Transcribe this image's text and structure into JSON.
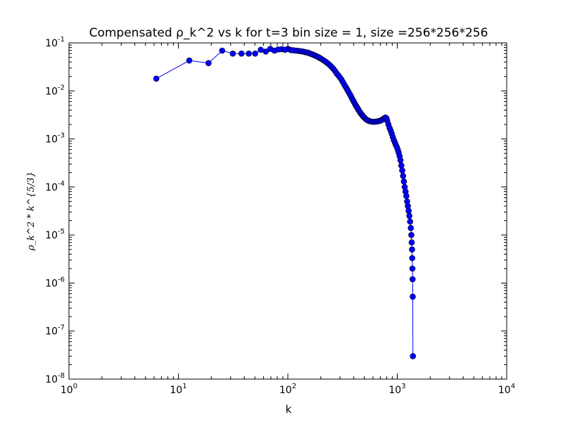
{
  "chart_data": {
    "type": "scatter",
    "title": "Compensated ρ_k^2 vs k for t=3 bin size = 1, size =256*256*256",
    "xlabel": "k",
    "ylabel": "ρ_k^2 * k^{5/3}",
    "xscale": "log",
    "yscale": "log",
    "xlim": [
      1,
      10000
    ],
    "ylim": [
      1e-08,
      0.1
    ],
    "x_ticks": [
      {
        "base": "10",
        "exp": "0",
        "value": 1
      },
      {
        "base": "10",
        "exp": "1",
        "value": 10
      },
      {
        "base": "10",
        "exp": "2",
        "value": 100
      },
      {
        "base": "10",
        "exp": "3",
        "value": 1000
      },
      {
        "base": "10",
        "exp": "4",
        "value": 10000
      }
    ],
    "y_ticks": [
      {
        "base": "10",
        "exp": "-8",
        "value": 1e-08
      },
      {
        "base": "10",
        "exp": "-7",
        "value": 1e-07
      },
      {
        "base": "10",
        "exp": "-6",
        "value": 1e-06
      },
      {
        "base": "10",
        "exp": "-5",
        "value": 1e-05
      },
      {
        "base": "10",
        "exp": "-4",
        "value": 0.0001
      },
      {
        "base": "10",
        "exp": "-3",
        "value": 0.001
      },
      {
        "base": "10",
        "exp": "-2",
        "value": 0.01
      },
      {
        "base": "10",
        "exp": "-1",
        "value": 0.1
      }
    ],
    "grid": false,
    "marker_color": "#0000ff",
    "marker_edge": "#000000",
    "line_color": "#0000ff",
    "series": [
      {
        "points": [
          [
            6.28,
            0.018
          ],
          [
            12.57,
            0.043
          ],
          [
            18.85,
            0.038
          ],
          [
            25.13,
            0.069
          ],
          [
            31.42,
            0.06
          ],
          [
            37.7,
            0.06
          ],
          [
            43.98,
            0.06
          ],
          [
            50.27,
            0.06
          ],
          [
            56.55,
            0.072
          ],
          [
            62.83,
            0.066
          ],
          [
            69.12,
            0.075
          ],
          [
            75.4,
            0.069
          ],
          [
            81.68,
            0.073
          ],
          [
            87.96,
            0.074
          ],
          [
            94.25,
            0.072
          ],
          [
            100.5,
            0.075
          ],
          [
            106.8,
            0.071
          ],
          [
            113.1,
            0.07
          ],
          [
            119.4,
            0.069
          ],
          [
            125.7,
            0.068
          ],
          [
            132,
            0.067
          ],
          [
            138.2,
            0.066
          ],
          [
            144.5,
            0.064
          ],
          [
            150.8,
            0.063
          ],
          [
            157.1,
            0.061
          ],
          [
            163.4,
            0.059
          ],
          [
            169.6,
            0.057
          ],
          [
            175.9,
            0.055
          ],
          [
            182.2,
            0.053
          ],
          [
            188.5,
            0.051
          ],
          [
            194.8,
            0.049
          ],
          [
            201,
            0.047
          ],
          [
            210,
            0.044
          ],
          [
            220,
            0.041
          ],
          [
            230,
            0.038
          ],
          [
            240,
            0.035
          ],
          [
            250,
            0.032
          ],
          [
            260,
            0.029
          ],
          [
            270,
            0.026
          ],
          [
            280,
            0.023
          ],
          [
            290,
            0.021
          ],
          [
            300,
            0.019
          ],
          [
            310,
            0.017
          ],
          [
            320,
            0.015
          ],
          [
            330,
            0.0132
          ],
          [
            340,
            0.0118
          ],
          [
            350,
            0.0105
          ],
          [
            360,
            0.0094
          ],
          [
            370,
            0.0084
          ],
          [
            380,
            0.0075
          ],
          [
            390,
            0.0067
          ],
          [
            400,
            0.006
          ],
          [
            410,
            0.0054
          ],
          [
            420,
            0.0049
          ],
          [
            430,
            0.0045
          ],
          [
            440,
            0.0041
          ],
          [
            450,
            0.0038
          ],
          [
            460,
            0.0035
          ],
          [
            470,
            0.0033
          ],
          [
            480,
            0.0031
          ],
          [
            490,
            0.0029
          ],
          [
            500,
            0.0028
          ],
          [
            515,
            0.0026
          ],
          [
            530,
            0.0025
          ],
          [
            545,
            0.0024
          ],
          [
            560,
            0.00235
          ],
          [
            580,
            0.0023
          ],
          [
            600,
            0.00228
          ],
          [
            620,
            0.00228
          ],
          [
            640,
            0.0023
          ],
          [
            660,
            0.00232
          ],
          [
            680,
            0.00236
          ],
          [
            700,
            0.0024
          ],
          [
            720,
            0.00248
          ],
          [
            740,
            0.00258
          ],
          [
            760,
            0.0027
          ],
          [
            780,
            0.0028
          ],
          [
            795,
            0.0027
          ],
          [
            810,
            0.0024
          ],
          [
            830,
            0.002
          ],
          [
            850,
            0.0017
          ],
          [
            870,
            0.0015
          ],
          [
            890,
            0.0013
          ],
          [
            910,
            0.0011
          ],
          [
            930,
            0.00095
          ],
          [
            950,
            0.00085
          ],
          [
            970,
            0.00075
          ],
          [
            990,
            0.00068
          ],
          [
            1010,
            0.0006
          ],
          [
            1030,
            0.00052
          ],
          [
            1050,
            0.00044
          ],
          [
            1070,
            0.00036
          ],
          [
            1090,
            0.00028
          ],
          [
            1110,
            0.00022
          ],
          [
            1130,
            0.00017
          ],
          [
            1150,
            0.00013
          ],
          [
            1170,
            0.0001
          ],
          [
            1190,
            8e-05
          ],
          [
            1210,
            6.5e-05
          ],
          [
            1230,
            5e-05
          ],
          [
            1250,
            4e-05
          ],
          [
            1270,
            3.2e-05
          ],
          [
            1290,
            2.5e-05
          ],
          [
            1310,
            1.9e-05
          ],
          [
            1330,
            1.4e-05
          ],
          [
            1345,
            1e-05
          ],
          [
            1355,
            7e-06
          ],
          [
            1365,
            5e-06
          ],
          [
            1370,
            3.3e-06
          ],
          [
            1375,
            2e-06
          ],
          [
            1380,
            1.2e-06
          ],
          [
            1385,
            5.2e-07
          ],
          [
            1390,
            3e-08
          ]
        ]
      }
    ]
  }
}
